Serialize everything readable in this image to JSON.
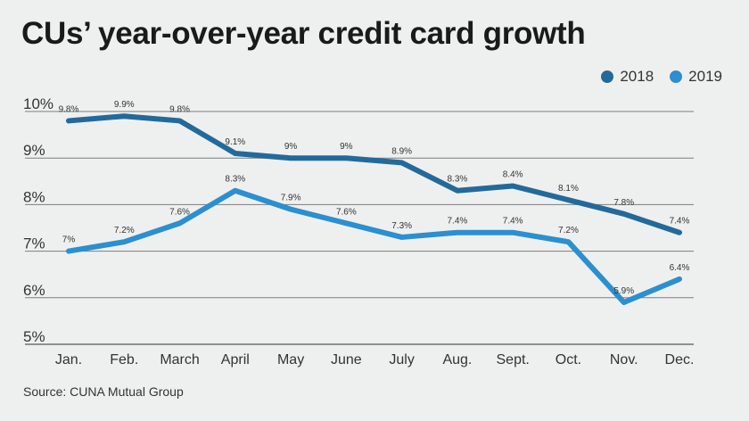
{
  "title": "CUs’ year-over-year credit card growth",
  "source": "Source: CUNA Mutual Group",
  "legend": {
    "items": [
      {
        "label": "2018",
        "color": "#236a9b"
      },
      {
        "label": "2019",
        "color": "#2b8fd0"
      }
    ],
    "placement": "top-right"
  },
  "chart_data": {
    "type": "line",
    "categories": [
      "Jan.",
      "Feb.",
      "March",
      "April",
      "May",
      "June",
      "July",
      "Aug.",
      "Sept.",
      "Oct.",
      "Nov.",
      "Dec."
    ],
    "series": [
      {
        "name": "2018",
        "color": "#236a9b",
        "values": [
          9.8,
          9.9,
          9.8,
          9.1,
          9.0,
          9.0,
          8.9,
          8.3,
          8.4,
          8.1,
          7.8,
          7.4
        ],
        "labels": [
          "9.8%",
          "9.9%",
          "9.8%",
          "9.1%",
          "9%",
          "9%",
          "8.9%",
          "8.3%",
          "8.4%",
          "8.1%",
          "7.8%",
          "7.4%"
        ]
      },
      {
        "name": "2019",
        "color": "#2b8fd0",
        "values": [
          7.0,
          7.2,
          7.6,
          8.3,
          7.9,
          7.6,
          7.3,
          7.4,
          7.4,
          7.2,
          5.9,
          6.4
        ],
        "labels": [
          "7%",
          "7.2%",
          "7.6%",
          "8.3%",
          "7.9%",
          "7.6%",
          "7.3%",
          "7.4%",
          "7.4%",
          "7.2%",
          "5.9%",
          "6.4%"
        ]
      }
    ],
    "yticks": [
      5,
      6,
      7,
      8,
      9,
      10
    ],
    "ytick_labels": [
      "5%",
      "6%",
      "7%",
      "8%",
      "9%",
      "10%"
    ],
    "ylim": [
      5,
      10
    ],
    "grid": true
  }
}
